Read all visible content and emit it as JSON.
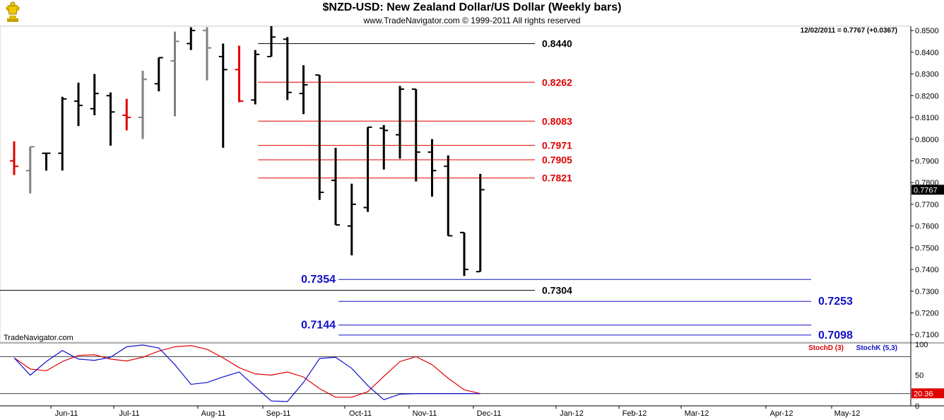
{
  "header": {
    "title": "$NZD-USD:  New Zealand Dollar/US Dollar  (Weekly bars)",
    "subtitle": "www.TradeNavigator.com © 1999-2011 All rights reserved",
    "logo_icon": "gold-trophy-logo-icon"
  },
  "colors": {
    "up_bar": "#000000",
    "prior_bar": "#808080",
    "highlight_bar": "#e00000",
    "red_level": "#e00000",
    "blue_level": "#1010c8",
    "black_level": "#000000",
    "stoch_d": "#e00000",
    "stoch_k": "#2020c0",
    "last_price_bg": "#000000",
    "stoch_value_bg": "#e00000"
  },
  "chart_data": [
    {
      "type": "ohlc",
      "title": "$NZD-USD:  New Zealand Dollar/US Dollar  (Weekly bars)",
      "last_quote": "12/02/2011 = 0.7767 (+0.0367)",
      "last_price_label": "0.7767",
      "watermark": "TradeNavigator.com",
      "ylim": [
        0.7065,
        0.852
      ],
      "y_ticks": [
        "0.8500",
        "0.8400",
        "0.8300",
        "0.8200",
        "0.8100",
        "0.8000",
        "0.7900",
        "0.7800",
        "0.7700",
        "0.7600",
        "0.7500",
        "0.7400",
        "0.7300",
        "0.7200",
        "0.7100"
      ],
      "x_months": [
        "Jun-11",
        "Jul-11",
        "Aug-11",
        "Sep-11",
        "Oct-11",
        "Nov-11",
        "Dec-11",
        "Jan-12",
        "Feb-12",
        "Mar-12",
        "Apr-12",
        "May-12"
      ],
      "bars": [
        {
          "o": 0.79,
          "h": 0.799,
          "l": 0.7835,
          "c": 0.7875,
          "style": "highlight"
        },
        {
          "o": 0.7855,
          "h": 0.7965,
          "l": 0.775,
          "c": 0.7965,
          "style": "prior"
        },
        {
          "o": 0.7935,
          "h": 0.7935,
          "l": 0.7855,
          "c": 0.7935,
          "style": "up"
        },
        {
          "o": 0.7935,
          "h": 0.8195,
          "l": 0.7855,
          "c": 0.8185,
          "style": "up"
        },
        {
          "o": 0.8175,
          "h": 0.826,
          "l": 0.806,
          "c": 0.8155,
          "style": "up"
        },
        {
          "o": 0.814,
          "h": 0.83,
          "l": 0.811,
          "c": 0.821,
          "style": "up"
        },
        {
          "o": 0.82,
          "h": 0.8215,
          "l": 0.797,
          "c": 0.8125,
          "style": "up"
        },
        {
          "o": 0.811,
          "h": 0.8185,
          "l": 0.804,
          "c": 0.81,
          "style": "highlight"
        },
        {
          "o": 0.81,
          "h": 0.8315,
          "l": 0.8,
          "c": 0.8275,
          "style": "prior"
        },
        {
          "o": 0.8255,
          "h": 0.8375,
          "l": 0.822,
          "c": 0.8375,
          "style": "up"
        },
        {
          "o": 0.836,
          "h": 0.8495,
          "l": 0.8105,
          "c": 0.845,
          "style": "prior"
        },
        {
          "o": 0.844,
          "h": 0.8515,
          "l": 0.841,
          "c": 0.85,
          "style": "up"
        },
        {
          "o": 0.85,
          "h": 0.8515,
          "l": 0.827,
          "c": 0.842,
          "style": "prior"
        },
        {
          "o": 0.838,
          "h": 0.844,
          "l": 0.796,
          "c": 0.832,
          "style": "up"
        },
        {
          "o": 0.832,
          "h": 0.843,
          "l": 0.817,
          "c": 0.8175,
          "style": "highlight"
        },
        {
          "o": 0.818,
          "h": 0.841,
          "l": 0.816,
          "c": 0.839,
          "style": "up"
        },
        {
          "o": 0.838,
          "h": 0.852,
          "l": 0.838,
          "c": 0.847,
          "style": "up"
        },
        {
          "o": 0.846,
          "h": 0.847,
          "l": 0.818,
          "c": 0.8215,
          "style": "up"
        },
        {
          "o": 0.821,
          "h": 0.834,
          "l": 0.8115,
          "c": 0.825,
          "style": "up"
        },
        {
          "o": 0.8295,
          "h": 0.8295,
          "l": 0.772,
          "c": 0.7755,
          "style": "up"
        },
        {
          "o": 0.781,
          "h": 0.796,
          "l": 0.7605,
          "c": 0.7605,
          "style": "up"
        },
        {
          "o": 0.76,
          "h": 0.7795,
          "l": 0.7465,
          "c": 0.77,
          "style": "up"
        },
        {
          "o": 0.7685,
          "h": 0.8055,
          "l": 0.7665,
          "c": 0.8055,
          "style": "up"
        },
        {
          "o": 0.805,
          "h": 0.8065,
          "l": 0.786,
          "c": 0.804,
          "style": "up"
        },
        {
          "o": 0.802,
          "h": 0.8245,
          "l": 0.791,
          "c": 0.823,
          "style": "up"
        },
        {
          "o": 0.823,
          "h": 0.823,
          "l": 0.7805,
          "c": 0.794,
          "style": "up"
        },
        {
          "o": 0.794,
          "h": 0.8,
          "l": 0.7735,
          "c": 0.7855,
          "style": "up"
        },
        {
          "o": 0.7875,
          "h": 0.7925,
          "l": 0.7555,
          "c": 0.7555,
          "style": "up"
        },
        {
          "o": 0.757,
          "h": 0.757,
          "l": 0.737,
          "c": 0.74,
          "style": "up"
        },
        {
          "o": 0.739,
          "h": 0.784,
          "l": 0.739,
          "c": 0.7767,
          "style": "up"
        }
      ],
      "levels": [
        {
          "value": 0.844,
          "label": "0.8440",
          "color": "black",
          "line_start_bar": 15,
          "label_side": "right"
        },
        {
          "value": 0.8262,
          "label": "0.8262",
          "color": "red",
          "line_start_bar": 15,
          "label_side": "right"
        },
        {
          "value": 0.8083,
          "label": "0.8083",
          "color": "red",
          "line_start_bar": 15,
          "label_side": "right"
        },
        {
          "value": 0.7971,
          "label": "0.7971",
          "color": "red",
          "line_start_bar": 15,
          "label_side": "right"
        },
        {
          "value": 0.7905,
          "label": "0.7905",
          "color": "red",
          "line_start_bar": 15,
          "label_side": "right"
        },
        {
          "value": 0.7821,
          "label": "0.7821",
          "color": "red",
          "line_start_bar": 15,
          "label_side": "right"
        },
        {
          "value": 0.7354,
          "label": "0.7354",
          "color": "blue",
          "line_start_bar": 20,
          "label_side": "left"
        },
        {
          "value": 0.7304,
          "label": "0.7304",
          "color": "black",
          "line_start_bar": -1,
          "label_side": "right"
        },
        {
          "value": 0.7253,
          "label": "0.7253",
          "color": "blue",
          "line_start_bar": 20,
          "label_side": "far-right"
        },
        {
          "value": 0.7144,
          "label": "0.7144",
          "color": "blue",
          "line_start_bar": 20,
          "label_side": "left"
        },
        {
          "value": 0.7098,
          "label": "0.7098",
          "color": "blue",
          "line_start_bar": 20,
          "label_side": "far-right"
        }
      ]
    },
    {
      "type": "line",
      "title": "",
      "ylim": [
        0,
        100
      ],
      "y_ticks": [
        "100",
        "50",
        "0"
      ],
      "reference_lines": [
        80,
        20
      ],
      "current_value_label": "20.36",
      "series": [
        {
          "name": "StochD (3)",
          "color": "red",
          "values": [
            78,
            60,
            57,
            72,
            82,
            83,
            76,
            73,
            79,
            89,
            96,
            98,
            92,
            78,
            62,
            52,
            50,
            55,
            47,
            28,
            14,
            14,
            23,
            48,
            72,
            80,
            67,
            45,
            26,
            20
          ]
        },
        {
          "name": "StochK (5,3)",
          "color": "blue",
          "values": [
            78,
            50,
            72,
            90,
            76,
            74,
            79,
            96,
            99,
            94,
            67,
            35,
            38,
            47,
            55,
            31,
            8,
            7,
            38,
            77,
            79,
            61,
            33,
            10,
            19,
            20,
            20,
            20,
            20,
            20
          ]
        }
      ]
    }
  ]
}
